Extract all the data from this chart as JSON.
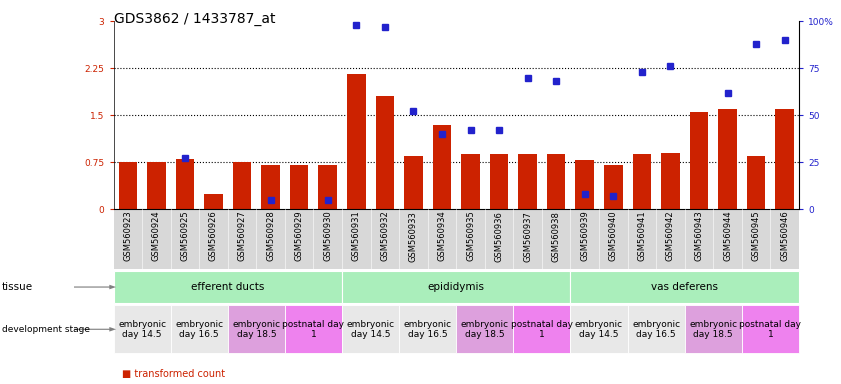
{
  "title": "GDS3862 / 1433787_at",
  "samples": [
    "GSM560923",
    "GSM560924",
    "GSM560925",
    "GSM560926",
    "GSM560927",
    "GSM560928",
    "GSM560929",
    "GSM560930",
    "GSM560931",
    "GSM560932",
    "GSM560933",
    "GSM560934",
    "GSM560935",
    "GSM560936",
    "GSM560937",
    "GSM560938",
    "GSM560939",
    "GSM560940",
    "GSM560941",
    "GSM560942",
    "GSM560943",
    "GSM560944",
    "GSM560945",
    "GSM560946"
  ],
  "bar_values": [
    0.76,
    0.76,
    0.8,
    0.25,
    0.76,
    0.7,
    0.7,
    0.7,
    2.15,
    1.8,
    0.85,
    1.35,
    0.88,
    0.88,
    0.88,
    0.88,
    0.78,
    0.7,
    0.88,
    0.9,
    1.55,
    1.6,
    0.85,
    1.6
  ],
  "dot_values": [
    null,
    null,
    27,
    null,
    null,
    5,
    null,
    5,
    98,
    97,
    52,
    40,
    42,
    42,
    70,
    68,
    8,
    7,
    73,
    76,
    null,
    62,
    88,
    90
  ],
  "bar_color": "#CC2200",
  "dot_color": "#2222CC",
  "ylim_left": [
    0,
    3
  ],
  "ylim_right": [
    0,
    100
  ],
  "yticks_left": [
    0,
    0.75,
    1.5,
    2.25,
    3
  ],
  "yticks_right": [
    0,
    25,
    50,
    75,
    100
  ],
  "ytick_labels_left": [
    "0",
    "0.75",
    "1.5",
    "2.25",
    "3"
  ],
  "ytick_labels_right": [
    "0",
    "25",
    "50",
    "75",
    "100%"
  ],
  "hlines": [
    0.75,
    1.5,
    2.25
  ],
  "tissue_groups": [
    {
      "label": "efferent ducts",
      "start": 0,
      "end": 7,
      "color": "#AAEEBB"
    },
    {
      "label": "epididymis",
      "start": 8,
      "end": 15,
      "color": "#AAEEBB"
    },
    {
      "label": "vas deferens",
      "start": 16,
      "end": 23,
      "color": "#AAEEBB"
    }
  ],
  "dev_groups": [
    {
      "label": "embryonic\nday 14.5",
      "start": 0,
      "end": 1,
      "color": "#E8E8E8"
    },
    {
      "label": "embryonic\nday 16.5",
      "start": 2,
      "end": 3,
      "color": "#E8E8E8"
    },
    {
      "label": "embryonic\nday 18.5",
      "start": 4,
      "end": 5,
      "color": "#DDA0DD"
    },
    {
      "label": "postnatal day\n1",
      "start": 6,
      "end": 7,
      "color": "#EE82EE"
    },
    {
      "label": "embryonic\nday 14.5",
      "start": 8,
      "end": 9,
      "color": "#E8E8E8"
    },
    {
      "label": "embryonic\nday 16.5",
      "start": 10,
      "end": 11,
      "color": "#E8E8E8"
    },
    {
      "label": "embryonic\nday 18.5",
      "start": 12,
      "end": 13,
      "color": "#DDA0DD"
    },
    {
      "label": "postnatal day\n1",
      "start": 14,
      "end": 15,
      "color": "#EE82EE"
    },
    {
      "label": "embryonic\nday 14.5",
      "start": 16,
      "end": 17,
      "color": "#E8E8E8"
    },
    {
      "label": "embryonic\nday 16.5",
      "start": 18,
      "end": 19,
      "color": "#E8E8E8"
    },
    {
      "label": "embryonic\nday 18.5",
      "start": 20,
      "end": 21,
      "color": "#DDA0DD"
    },
    {
      "label": "postnatal day\n1",
      "start": 22,
      "end": 23,
      "color": "#EE82EE"
    }
  ],
  "bg_color": "#FFFFFF",
  "bar_width": 0.65,
  "title_fontsize": 10,
  "tick_fontsize": 6.5,
  "sample_fontsize": 6,
  "annot_fontsize": 7.5,
  "dev_fontsize": 6.5,
  "xtick_bg": "#D0D0D0"
}
